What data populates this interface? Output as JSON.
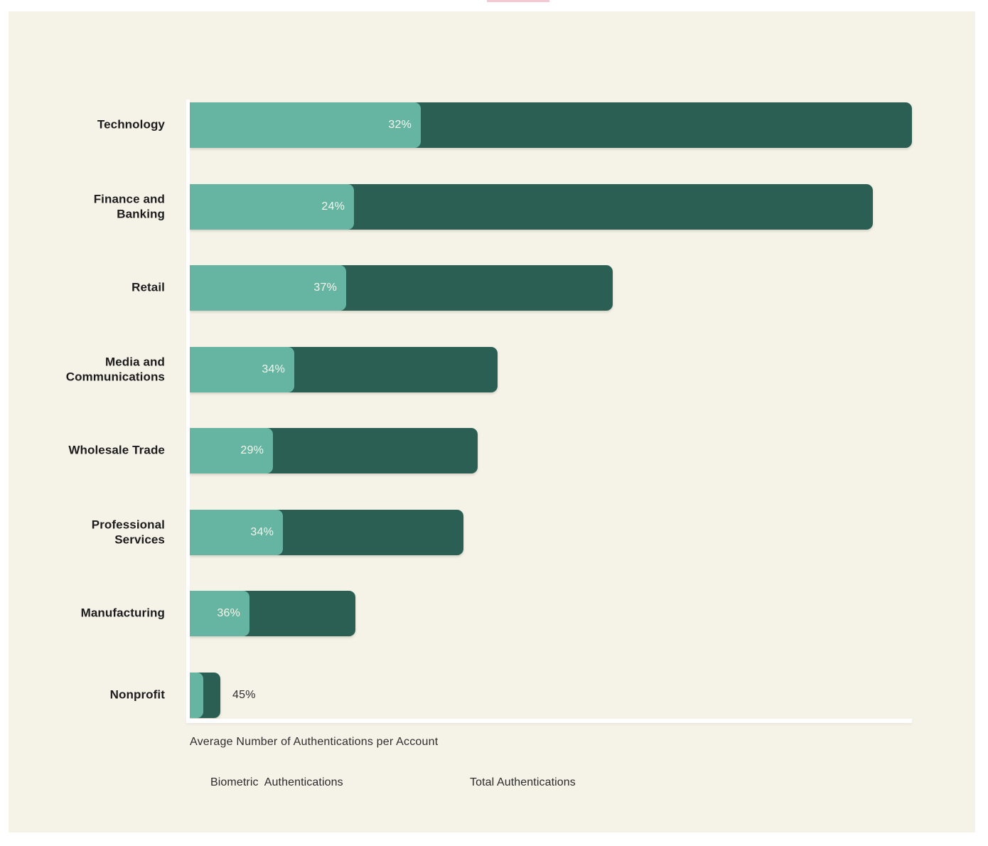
{
  "page": {
    "background": "#FFFFFF",
    "panel_background": "#F5F2E8",
    "top_accent_color": "#F4C8D3",
    "axis_line_color": "#FFFFFF"
  },
  "chart_data": {
    "type": "bar",
    "orientation": "horizontal",
    "title": "",
    "xlabel": "Average Number of Authentications per Account",
    "grid": false,
    "categories": [
      "Technology",
      "Finance and Banking",
      "Retail",
      "Media and Communications",
      "Wholesale Trade",
      "Professional Services",
      "Manufacturing",
      "Nonprofit"
    ],
    "display_labels": [
      "Technology",
      "Finance and\nBanking",
      "Retail",
      "Media and\nCommunications",
      "Wholesale Trade",
      "Professional\nServices",
      "Manufacturing",
      "Nonprofit"
    ],
    "series": [
      {
        "name": "Biometric Authentications",
        "color": "#66B5A3",
        "unit": "percent of total authentications",
        "values": [
          32,
          24,
          37,
          34,
          29,
          34,
          36,
          45
        ]
      },
      {
        "name": "Total Authentications",
        "color": "#2C5F54",
        "unit": "relative bar length (Technology = 1.0)",
        "values": [
          1.0,
          0.946,
          0.586,
          0.426,
          0.399,
          0.379,
          0.229,
          0.042
        ]
      }
    ],
    "bar_value_labels": [
      "32%",
      "24%",
      "37%",
      "34%",
      "29%",
      "34%",
      "36%",
      "45%"
    ],
    "value_label_placement": [
      "inside",
      "inside",
      "inside",
      "inside",
      "inside",
      "inside",
      "inside",
      "outside"
    ],
    "legend": {
      "position": "bottom",
      "items": [
        {
          "label": "Biometric  Authentications",
          "color": "#66B5A3"
        },
        {
          "label": "Total Authentications",
          "color": "#2C5F54"
        }
      ]
    }
  }
}
